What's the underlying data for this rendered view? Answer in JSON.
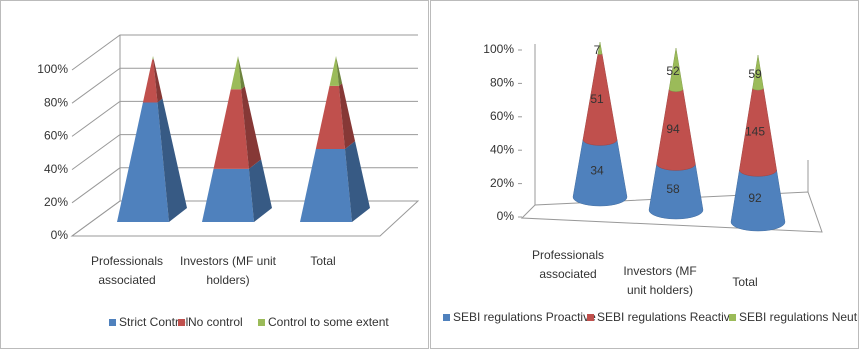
{
  "chart_data": [
    {
      "type": "pyramid100",
      "categories": [
        "Professionals associated",
        "Investors (MF unit holders)",
        "Total"
      ],
      "series": [
        {
          "name": "Strict Control",
          "color": "#4f81bd",
          "values": [
            72,
            32,
            44
          ]
        },
        {
          "name": "No control",
          "color": "#c0504d",
          "values": [
            26,
            48,
            38
          ]
        },
        {
          "name": "Control to some extent",
          "color": "#9bbb59",
          "values": [
            2,
            20,
            18
          ]
        }
      ],
      "ylim": [
        0,
        100
      ],
      "yticks": [
        {
          "value": 0,
          "label": "0%"
        },
        {
          "value": 20,
          "label": "20%"
        },
        {
          "value": 40,
          "label": "40%"
        },
        {
          "value": 60,
          "label": "60%"
        },
        {
          "value": 80,
          "label": "80%"
        },
        {
          "value": 100,
          "label": "100%"
        }
      ],
      "grid": true,
      "legend": "bottom"
    },
    {
      "type": "cone100",
      "categories": [
        "Professionals associated",
        "Investors (MF unit holders)",
        "Total"
      ],
      "series": [
        {
          "name": "SEBI regulations Proactive",
          "color": "#4f81bd",
          "values": [
            34,
            58,
            92
          ]
        },
        {
          "name": "SEBI regulations Reactive",
          "color": "#c0504d",
          "values": [
            51,
            94,
            145
          ]
        },
        {
          "name": "SEBI regulations Neutral",
          "color": "#9bbb59",
          "values": [
            7,
            52,
            59
          ]
        }
      ],
      "ylim": [
        0,
        100
      ],
      "yticks": [
        {
          "value": 0,
          "label": "0%"
        },
        {
          "value": 20,
          "label": "20%"
        },
        {
          "value": 40,
          "label": "40%"
        },
        {
          "value": 60,
          "label": "60%"
        },
        {
          "value": 80,
          "label": "80%"
        },
        {
          "value": 100,
          "label": "100%"
        }
      ],
      "grid": false,
      "legend": "bottom",
      "data_labels": true
    }
  ]
}
